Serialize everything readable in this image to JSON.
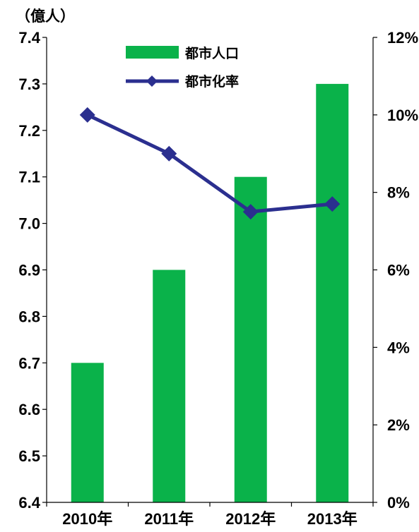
{
  "chart_data": {
    "type": "bar",
    "categories": [
      "2010年",
      "2011年",
      "2012年",
      "2013年"
    ],
    "series": [
      {
        "name": "都市人口",
        "type": "bar",
        "axis": "left",
        "values": [
          6.7,
          6.9,
          7.1,
          7.3
        ]
      },
      {
        "name": "都市化率",
        "type": "line",
        "axis": "right",
        "marker": "diamond",
        "values": [
          10.0,
          9.0,
          7.5,
          7.7
        ]
      }
    ],
    "y_left": {
      "unit_label": "（億人）",
      "ylim": [
        6.4,
        7.4
      ],
      "ticks": [
        "7.4",
        "7.3",
        "7.2",
        "7.1",
        "7.0",
        "6.9",
        "6.8",
        "6.7",
        "6.6",
        "6.5",
        "6.4"
      ]
    },
    "y_right": {
      "ylim": [
        0,
        12
      ],
      "ticks": [
        "12%",
        "10%",
        "8%",
        "6%",
        "4%",
        "2%",
        "0%"
      ]
    },
    "grid": false,
    "legend_placement": "top-center",
    "colors": {
      "bar": "#0ab24a",
      "line": "#2b2f8f",
      "axis": "#000000"
    }
  }
}
